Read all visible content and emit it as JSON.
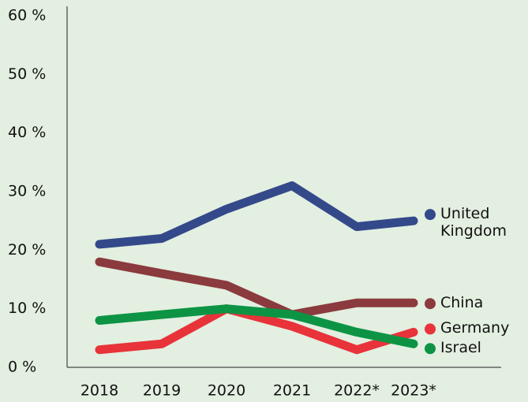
{
  "chart_data": {
    "type": "line",
    "categories": [
      "2018",
      "2019",
      "2020",
      "2021",
      "2022*",
      "2023*"
    ],
    "series": [
      {
        "name": "United Kingdom",
        "color": "#34498a",
        "values": [
          21,
          22,
          27,
          31,
          24,
          25
        ]
      },
      {
        "name": "China",
        "color": "#8b3a3e",
        "values": [
          18,
          16,
          14,
          9,
          11,
          11
        ]
      },
      {
        "name": "Germany",
        "color": "#e8333a",
        "values": [
          3,
          4,
          10,
          7,
          3,
          6
        ]
      },
      {
        "name": "Israel",
        "color": "#0c9444",
        "values": [
          8,
          9,
          10,
          9,
          6,
          4
        ]
      }
    ],
    "ylim": [
      0,
      60
    ],
    "yticks": [
      {
        "value": 0,
        "label": "0 %"
      },
      {
        "value": 10,
        "label": "10 %"
      },
      {
        "value": 20,
        "label": "20 %"
      },
      {
        "value": 30,
        "label": "30 %"
      },
      {
        "value": 40,
        "label": "40 %"
      },
      {
        "value": 50,
        "label": "50 %"
      },
      {
        "value": 60,
        "label": "60 %"
      }
    ],
    "grid": false
  }
}
